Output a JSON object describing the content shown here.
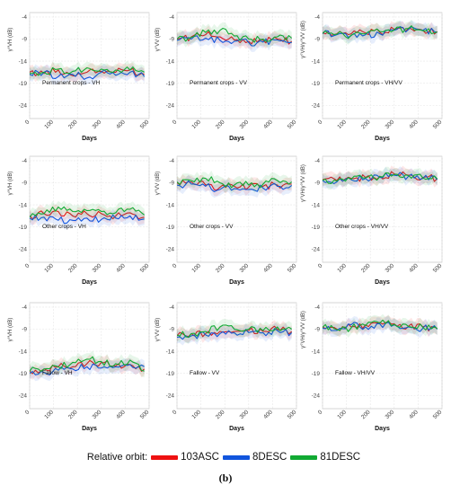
{
  "figure": {
    "caption": "(b)"
  },
  "legend": {
    "title": "Relative orbit:",
    "items": [
      {
        "name": "103ASC",
        "color": "#ee1111"
      },
      {
        "name": "8DESC",
        "color": "#1155dd"
      },
      {
        "name": "81DESC",
        "color": "#11aa33"
      }
    ]
  },
  "chart_data": [
    {
      "type": "line",
      "panel_label": "Permanent crops - VH",
      "xlabel": "Days",
      "ylabel": "γ°VH (dB)",
      "xlim": [
        0,
        500
      ],
      "ylim": [
        -27,
        -3
      ],
      "xticks": [
        0,
        100,
        200,
        300,
        400,
        500
      ],
      "yticks": [
        -4,
        -9,
        -14,
        -19,
        -24
      ],
      "grid": true,
      "x": [
        0,
        60,
        120,
        180,
        240,
        300,
        360,
        420,
        480
      ],
      "series": [
        {
          "name": "103ASC",
          "values": [
            -16.5,
            -16.8,
            -16.0,
            -17.3,
            -16.5,
            -16.3,
            -16.5,
            -16.0,
            -17.0
          ]
        },
        {
          "name": "8DESC",
          "values": [
            -17.0,
            -16.5,
            -17.5,
            -17.0,
            -17.8,
            -16.5,
            -17.2,
            -16.5,
            -17.5
          ]
        },
        {
          "name": "81DESC",
          "values": [
            -16.8,
            -16.5,
            -15.8,
            -16.3,
            -15.5,
            -15.8,
            -16.0,
            -16.0,
            -16.5
          ]
        }
      ]
    },
    {
      "type": "line",
      "panel_label": "Permanent crops - VV",
      "xlabel": "Days",
      "ylabel": "γ°VV (dB)",
      "xlim": [
        0,
        500
      ],
      "ylim": [
        -27,
        -3
      ],
      "xticks": [
        0,
        100,
        200,
        300,
        400,
        500
      ],
      "yticks": [
        -4,
        -9,
        -14,
        -19,
        -24
      ],
      "grid": true,
      "x": [
        0,
        60,
        120,
        180,
        240,
        300,
        360,
        420,
        480
      ],
      "series": [
        {
          "name": "103ASC",
          "values": [
            -9.0,
            -8.5,
            -8.0,
            -8.5,
            -9.2,
            -9.5,
            -9.3,
            -9.0,
            -9.5
          ]
        },
        {
          "name": "8DESC",
          "values": [
            -9.3,
            -9.0,
            -8.8,
            -9.3,
            -9.5,
            -9.8,
            -9.7,
            -9.2,
            -9.8
          ]
        },
        {
          "name": "81DESC",
          "values": [
            -9.0,
            -8.6,
            -7.5,
            -7.0,
            -8.3,
            -9.0,
            -9.0,
            -8.5,
            -8.8
          ]
        }
      ]
    },
    {
      "type": "line",
      "panel_label": "Permanent crops - VH/VV",
      "xlabel": "Days",
      "ylabel": "γ°VH/γ°VV (dB)",
      "xlim": [
        0,
        500
      ],
      "ylim": [
        -27,
        -3
      ],
      "xticks": [
        0,
        100,
        200,
        300,
        400,
        500
      ],
      "yticks": [
        -4,
        -9,
        -14,
        -19,
        -24
      ],
      "grid": true,
      "x": [
        0,
        60,
        120,
        180,
        240,
        300,
        360,
        420,
        480
      ],
      "series": [
        {
          "name": "103ASC",
          "values": [
            -7.5,
            -7.8,
            -7.8,
            -7.6,
            -7.5,
            -6.8,
            -6.5,
            -7.0,
            -7.3
          ]
        },
        {
          "name": "8DESC",
          "values": [
            -7.8,
            -8.0,
            -8.2,
            -8.0,
            -7.8,
            -7.0,
            -6.8,
            -7.0,
            -7.5
          ]
        },
        {
          "name": "81DESC",
          "values": [
            -7.7,
            -7.9,
            -8.1,
            -7.8,
            -7.3,
            -6.9,
            -6.6,
            -7.1,
            -7.4
          ]
        }
      ]
    },
    {
      "type": "line",
      "panel_label": "Other crops - VH",
      "xlabel": "Days",
      "ylabel": "γ°VH (dB)",
      "xlim": [
        0,
        500
      ],
      "ylim": [
        -27,
        -3
      ],
      "xticks": [
        0,
        100,
        200,
        300,
        400,
        500
      ],
      "yticks": [
        -4,
        -9,
        -14,
        -19,
        -24
      ],
      "grid": true,
      "x": [
        0,
        60,
        120,
        180,
        240,
        300,
        360,
        420,
        480
      ],
      "series": [
        {
          "name": "103ASC",
          "values": [
            -16.5,
            -16.0,
            -15.5,
            -16.5,
            -16.0,
            -16.0,
            -16.5,
            -15.8,
            -16.8
          ]
        },
        {
          "name": "8DESC",
          "values": [
            -17.0,
            -16.8,
            -17.5,
            -17.5,
            -17.0,
            -17.3,
            -17.0,
            -16.5,
            -17.2
          ]
        },
        {
          "name": "81DESC",
          "values": [
            -16.8,
            -16.0,
            -14.5,
            -15.5,
            -15.3,
            -15.5,
            -15.8,
            -15.0,
            -16.3
          ]
        }
      ]
    },
    {
      "type": "line",
      "panel_label": "Other crops - VV",
      "xlabel": "Days",
      "ylabel": "γ°VV (dB)",
      "xlim": [
        0,
        500
      ],
      "ylim": [
        -27,
        -3
      ],
      "xticks": [
        0,
        100,
        200,
        300,
        400,
        500
      ],
      "yticks": [
        -4,
        -9,
        -14,
        -19,
        -24
      ],
      "grid": true,
      "x": [
        0,
        60,
        120,
        180,
        240,
        300,
        360,
        420,
        480
      ],
      "series": [
        {
          "name": "103ASC",
          "values": [
            -9.0,
            -8.8,
            -9.5,
            -10.0,
            -9.8,
            -10.0,
            -9.8,
            -9.5,
            -9.3
          ]
        },
        {
          "name": "8DESC",
          "values": [
            -9.5,
            -9.3,
            -9.8,
            -10.5,
            -10.3,
            -10.5,
            -10.2,
            -9.8,
            -9.6
          ]
        },
        {
          "name": "81DESC",
          "values": [
            -8.8,
            -8.5,
            -8.0,
            -9.0,
            -9.5,
            -9.5,
            -9.3,
            -8.5,
            -8.8
          ]
        }
      ]
    },
    {
      "type": "line",
      "panel_label": "Other crops - VH/VV",
      "xlabel": "Days",
      "ylabel": "γ°VH/γ°VV (dB)",
      "xlim": [
        0,
        500
      ],
      "ylim": [
        -27,
        -3
      ],
      "xticks": [
        0,
        100,
        200,
        300,
        400,
        500
      ],
      "yticks": [
        -4,
        -9,
        -14,
        -19,
        -24
      ],
      "grid": true,
      "x": [
        0,
        60,
        120,
        180,
        240,
        300,
        360,
        420,
        480
      ],
      "series": [
        {
          "name": "103ASC",
          "values": [
            -8.3,
            -8.5,
            -8.0,
            -7.8,
            -7.5,
            -7.0,
            -7.3,
            -7.8,
            -8.0
          ]
        },
        {
          "name": "8DESC",
          "values": [
            -8.5,
            -8.8,
            -8.3,
            -8.0,
            -7.8,
            -7.3,
            -7.5,
            -8.0,
            -8.3
          ]
        },
        {
          "name": "81DESC",
          "values": [
            -8.4,
            -8.6,
            -8.2,
            -7.9,
            -7.6,
            -7.1,
            -7.4,
            -7.9,
            -8.1
          ]
        }
      ]
    },
    {
      "type": "line",
      "panel_label": "Fallow - VH",
      "xlabel": "Days",
      "ylabel": "γ°VH (dB)",
      "xlim": [
        0,
        500
      ],
      "ylim": [
        -27,
        -3
      ],
      "xticks": [
        0,
        100,
        200,
        300,
        400,
        500
      ],
      "yticks": [
        -4,
        -9,
        -14,
        -19,
        -24
      ],
      "grid": true,
      "x": [
        0,
        60,
        120,
        180,
        240,
        300,
        360,
        420,
        480
      ],
      "series": [
        {
          "name": "103ASC",
          "values": [
            -18.5,
            -18.0,
            -17.5,
            -17.5,
            -16.8,
            -16.5,
            -17.3,
            -17.0,
            -18.0
          ]
        },
        {
          "name": "8DESC",
          "values": [
            -19.0,
            -18.8,
            -18.3,
            -18.0,
            -17.5,
            -17.8,
            -17.5,
            -17.0,
            -17.5
          ]
        },
        {
          "name": "81DESC",
          "values": [
            -18.5,
            -18.0,
            -17.5,
            -16.5,
            -15.8,
            -16.3,
            -16.8,
            -16.0,
            -18.5
          ]
        }
      ]
    },
    {
      "type": "line",
      "panel_label": "Fallow - VV",
      "xlabel": "Days",
      "ylabel": "γ°VV (dB)",
      "xlim": [
        0,
        500
      ],
      "ylim": [
        -27,
        -3
      ],
      "xticks": [
        0,
        100,
        200,
        300,
        400,
        500
      ],
      "yticks": [
        -4,
        -9,
        -14,
        -19,
        -24
      ],
      "grid": true,
      "x": [
        0,
        60,
        120,
        180,
        240,
        300,
        360,
        420,
        480
      ],
      "series": [
        {
          "name": "103ASC",
          "values": [
            -10.5,
            -10.0,
            -10.0,
            -9.5,
            -9.5,
            -9.3,
            -9.5,
            -9.0,
            -9.5
          ]
        },
        {
          "name": "8DESC",
          "values": [
            -10.8,
            -10.5,
            -10.3,
            -10.0,
            -9.8,
            -9.8,
            -9.8,
            -9.3,
            -9.8
          ]
        },
        {
          "name": "81DESC",
          "values": [
            -10.3,
            -10.0,
            -9.5,
            -8.5,
            -9.0,
            -9.0,
            -9.3,
            -8.5,
            -9.0
          ]
        }
      ]
    },
    {
      "type": "line",
      "panel_label": "Fallow - VH/VV",
      "xlabel": "Days",
      "ylabel": "γ°VH/γ°VV (dB)",
      "xlim": [
        0,
        500
      ],
      "ylim": [
        -27,
        -3
      ],
      "xticks": [
        0,
        100,
        200,
        300,
        400,
        500
      ],
      "yticks": [
        -4,
        -9,
        -14,
        -19,
        -24
      ],
      "grid": true,
      "x": [
        0,
        60,
        120,
        180,
        240,
        300,
        360,
        420,
        480
      ],
      "series": [
        {
          "name": "103ASC",
          "values": [
            -8.5,
            -9.0,
            -8.5,
            -8.0,
            -7.5,
            -7.8,
            -8.3,
            -8.5,
            -8.8
          ]
        },
        {
          "name": "8DESC",
          "values": [
            -8.8,
            -9.3,
            -8.0,
            -8.5,
            -7.8,
            -8.0,
            -8.5,
            -8.8,
            -9.0
          ]
        },
        {
          "name": "81DESC",
          "values": [
            -8.6,
            -9.1,
            -8.7,
            -8.2,
            -7.6,
            -7.9,
            -8.4,
            -8.6,
            -8.9
          ]
        }
      ]
    }
  ]
}
